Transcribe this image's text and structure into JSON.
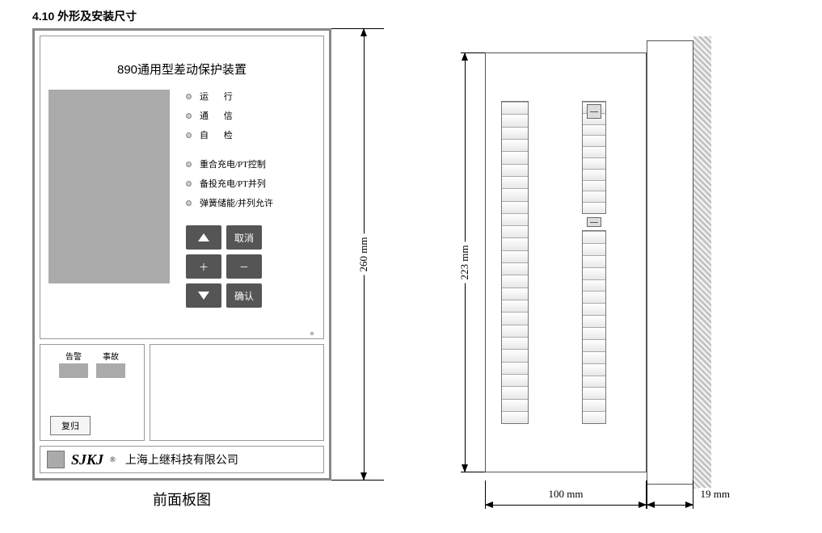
{
  "section_heading": "4.10 外形及安装尺寸",
  "front_panel": {
    "title": "890通用型差动保护装置",
    "leds_group1": [
      {
        "label": "运 行"
      },
      {
        "label": "通 信"
      },
      {
        "label": "自 检"
      }
    ],
    "leds_group2": [
      {
        "label": "重合充电/PT控制"
      },
      {
        "label": "备投充电/PT并列"
      },
      {
        "label": "弹簧储能/并列允许"
      }
    ],
    "keypad": {
      "up": "▲",
      "cancel": "取消",
      "plus": "＋",
      "minus": "－",
      "down": "▼",
      "confirm": "确认"
    },
    "alarm_label": "告警",
    "fault_label": "事故",
    "reset_label": "复归",
    "logo_text": "SJKJ",
    "logo_mark": "®",
    "company": "上海上继科技有限公司",
    "caption": "前面板图"
  },
  "dimensions": {
    "height_outer": "260 mm",
    "height_inner": "223 mm",
    "depth": "100 mm",
    "bezel": "19 mm"
  },
  "side_view": {
    "terminal_left_cells": 26,
    "terminal_r1_cells": 10,
    "terminal_r2_cells": 16
  },
  "colors": {
    "panel_border": "#888888",
    "screen_fill": "#aaaaaa",
    "key_bg": "#555555",
    "hatch": "#bbbbbb"
  }
}
